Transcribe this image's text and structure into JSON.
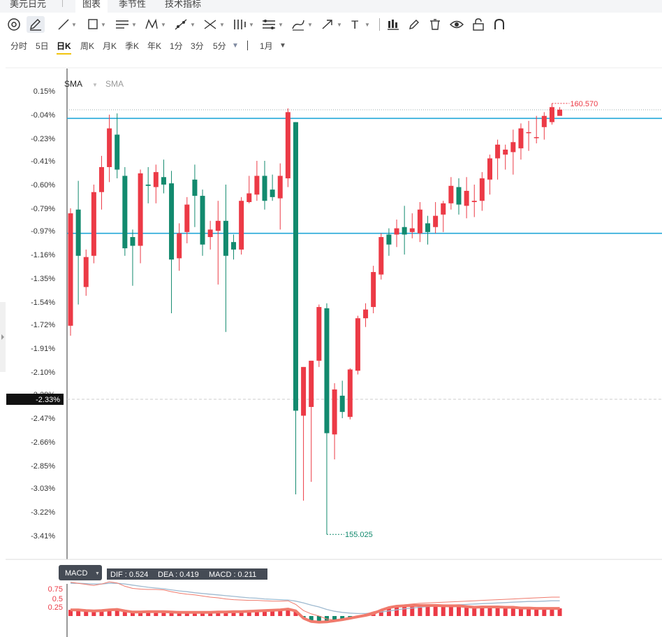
{
  "tabs": {
    "instrument": "美元日元",
    "chart": "图表",
    "seasonal": "季节性",
    "indicators": "技术指标"
  },
  "toolbar": {
    "tools": [
      "circle-tool",
      "pencil-tool",
      "line-tool",
      "rect-tool",
      "channel-tool",
      "pattern-tool",
      "ruler-tool",
      "fib-tool",
      "bars-tool",
      "hlines-tool",
      "brush-tool",
      "arrow-tool",
      "text-tool",
      "chart-template-tool",
      "edit-tool",
      "trash-tool",
      "eye-tool",
      "lock-tool",
      "magnet-tool"
    ]
  },
  "periods": {
    "items": [
      "分时",
      "5日",
      "日K",
      "周K",
      "月K",
      "季K",
      "年K",
      "1分",
      "3分",
      "5分"
    ],
    "active": "日K",
    "range": "1月"
  },
  "legend": {
    "main": "SMA",
    "secondary": "SMA"
  },
  "yaxis": {
    "ticks": [
      "0.15%",
      "-0.04%",
      "-0.23%",
      "-0.41%",
      "-0.60%",
      "-0.79%",
      "-0.97%",
      "-1.16%",
      "-1.35%",
      "-1.54%",
      "-1.72%",
      "-1.91%",
      "-2.10%",
      "-2.28%",
      "-2.47%",
      "-2.66%",
      "-2.85%",
      "-3.03%",
      "-3.22%",
      "-3.41%"
    ],
    "crosshair_label": "-2.33%"
  },
  "annotations": {
    "high": "160.570",
    "low": "155.025"
  },
  "macd": {
    "label": "MACD",
    "dif": "DIF : 0.524",
    "dea": "DEA : 0.419",
    "macd": "MACD : 0.211",
    "ticks": [
      "0.75",
      "0.5",
      "0.25"
    ]
  },
  "colors": {
    "up": "#ec3a46",
    "down": "#128a6e",
    "hline": "#22a7d8",
    "macd_line": "#f07a6c",
    "dea_line": "#9fbad0"
  },
  "chart_data": {
    "type": "candlestick",
    "y_unit": "%",
    "ylim": [
      -3.5,
      0.2
    ],
    "horizontal_lines": [
      -0.07,
      -0.99
    ],
    "candles": [
      {
        "o": -1.73,
        "c": -0.83,
        "h": -0.79,
        "l": -1.81
      },
      {
        "o": -0.8,
        "c": -1.17,
        "h": -0.57,
        "l": -1.56
      },
      {
        "o": -1.42,
        "c": -1.18,
        "h": -1.12,
        "l": -1.49
      },
      {
        "o": -1.17,
        "c": -0.66,
        "h": -0.6,
        "l": -1.23
      },
      {
        "o": -0.66,
        "c": -0.46,
        "h": -0.37,
        "l": -0.8
      },
      {
        "o": -0.46,
        "c": -0.15,
        "h": -0.04,
        "l": -0.58
      },
      {
        "o": -0.2,
        "c": -0.48,
        "h": -0.03,
        "l": -0.55
      },
      {
        "o": -0.53,
        "c": -1.11,
        "h": -0.46,
        "l": -1.17
      },
      {
        "o": -1.02,
        "c": -1.09,
        "h": -0.96,
        "l": -1.41
      },
      {
        "o": -1.09,
        "c": -0.51,
        "h": -0.48,
        "l": -1.23
      },
      {
        "o": -0.6,
        "c": -0.61,
        "h": -0.46,
        "l": -0.75
      },
      {
        "o": -0.62,
        "c": -0.5,
        "h": -0.44,
        "l": -0.75
      },
      {
        "o": -0.54,
        "c": -0.6,
        "h": -0.4,
        "l": -0.67
      },
      {
        "o": -0.59,
        "c": -1.2,
        "h": -0.49,
        "l": -1.63
      },
      {
        "o": -1.19,
        "c": -0.99,
        "h": -0.91,
        "l": -1.29
      },
      {
        "o": -0.98,
        "c": -0.76,
        "h": -0.7,
        "l": -1.07
      },
      {
        "o": -0.56,
        "c": -0.69,
        "h": -0.44,
        "l": -0.94
      },
      {
        "o": -0.69,
        "c": -1.08,
        "h": -0.64,
        "l": -1.17
      },
      {
        "o": -1.02,
        "c": -0.96,
        "h": -0.89,
        "l": -1.12
      },
      {
        "o": -0.97,
        "c": -0.89,
        "h": -0.73,
        "l": -1.4
      },
      {
        "o": -0.89,
        "c": -1.17,
        "h": -0.6,
        "l": -1.78
      },
      {
        "o": -1.06,
        "c": -1.12,
        "h": -1.0,
        "l": -1.2
      },
      {
        "o": -1.12,
        "c": -0.73,
        "h": -0.7,
        "l": -1.16
      },
      {
        "o": -0.74,
        "c": -0.67,
        "h": -0.53,
        "l": -0.75
      },
      {
        "o": -0.68,
        "c": -0.53,
        "h": -0.41,
        "l": -0.73
      },
      {
        "o": -0.53,
        "c": -0.73,
        "h": -0.41,
        "l": -0.8
      },
      {
        "o": -0.64,
        "c": -0.7,
        "h": -0.52,
        "l": -0.73
      },
      {
        "o": -0.71,
        "c": -0.53,
        "h": -0.43,
        "l": -0.96
      },
      {
        "o": -0.55,
        "c": -0.02,
        "h": 0.01,
        "l": -0.62
      },
      {
        "o": -0.1,
        "c": -2.41,
        "h": -0.1,
        "l": -3.08
      },
      {
        "o": -2.45,
        "c": -2.06,
        "h": -2.06,
        "l": -3.13
      },
      {
        "o": -2.38,
        "c": -2.01,
        "h": -2.01,
        "l": -2.98
      },
      {
        "o": -2.01,
        "c": -1.58,
        "h": -1.56,
        "l": -2.06
      },
      {
        "o": -1.59,
        "c": -2.59,
        "h": -1.55,
        "l": -3.4
      },
      {
        "o": -2.6,
        "c": -2.24,
        "h": -2.19,
        "l": -2.8
      },
      {
        "o": -2.29,
        "c": -2.42,
        "h": -2.17,
        "l": -2.47
      },
      {
        "o": -2.46,
        "c": -2.08,
        "h": -2.07,
        "l": -2.48
      },
      {
        "o": -2.09,
        "c": -1.67,
        "h": -1.65,
        "l": -2.12
      },
      {
        "o": -1.67,
        "c": -1.6,
        "h": -1.55,
        "l": -1.74
      },
      {
        "o": -1.58,
        "c": -1.3,
        "h": -1.25,
        "l": -1.63
      },
      {
        "o": -1.32,
        "c": -1.02,
        "h": -0.99,
        "l": -1.36
      },
      {
        "o": -1.0,
        "c": -1.08,
        "h": -0.95,
        "l": -1.17
      },
      {
        "o": -1.0,
        "c": -0.95,
        "h": -0.88,
        "l": -1.1
      },
      {
        "o": -0.94,
        "c": -1.0,
        "h": -0.77,
        "l": -1.16
      },
      {
        "o": -0.98,
        "c": -0.95,
        "h": -0.83,
        "l": -1.03
      },
      {
        "o": -0.99,
        "c": -0.8,
        "h": -0.74,
        "l": -1.06
      },
      {
        "o": -0.91,
        "c": -0.98,
        "h": -0.85,
        "l": -1.08
      },
      {
        "o": -0.94,
        "c": -0.85,
        "h": -0.74,
        "l": -0.99
      },
      {
        "o": -0.84,
        "c": -0.75,
        "h": -0.73,
        "l": -0.98
      },
      {
        "o": -0.75,
        "c": -0.61,
        "h": -0.54,
        "l": -0.8
      },
      {
        "o": -0.62,
        "c": -0.76,
        "h": -0.55,
        "l": -0.84
      },
      {
        "o": -0.77,
        "c": -0.65,
        "h": -0.54,
        "l": -0.87
      },
      {
        "o": -0.74,
        "c": -0.73,
        "h": -0.6,
        "l": -0.86
      },
      {
        "o": -0.73,
        "c": -0.55,
        "h": -0.5,
        "l": -0.81
      },
      {
        "o": -0.56,
        "c": -0.39,
        "h": -0.36,
        "l": -0.68
      },
      {
        "o": -0.39,
        "c": -0.28,
        "h": -0.24,
        "l": -0.56
      },
      {
        "o": -0.36,
        "c": -0.32,
        "h": -0.28,
        "l": -0.48
      },
      {
        "o": -0.34,
        "c": -0.26,
        "h": -0.16,
        "l": -0.52
      },
      {
        "o": -0.31,
        "c": -0.15,
        "h": -0.11,
        "l": -0.4
      },
      {
        "o": -0.18,
        "c": -0.18,
        "h": -0.09,
        "l": -0.33
      },
      {
        "o": -0.22,
        "c": -0.22,
        "h": -0.05,
        "l": -0.27
      },
      {
        "o": -0.14,
        "c": -0.05,
        "h": -0.02,
        "l": -0.24
      },
      {
        "o": -0.1,
        "c": 0.02,
        "h": 0.05,
        "l": -0.12
      },
      {
        "o": -0.05,
        "c": 0.0,
        "h": 0.02,
        "l": -0.03
      }
    ],
    "macd": {
      "histogram": [
        0.17,
        0.17,
        0.15,
        0.14,
        0.15,
        0.17,
        0.18,
        0.14,
        0.11,
        0.11,
        0.12,
        0.12,
        0.12,
        0.11,
        0.1,
        0.1,
        0.1,
        0.1,
        0.1,
        0.11,
        0.11,
        0.12,
        0.12,
        0.13,
        0.14,
        0.15,
        0.16,
        0.17,
        0.19,
        0.14,
        -0.06,
        -0.15,
        -0.17,
        -0.16,
        -0.13,
        -0.1,
        -0.06,
        -0.02,
        0.02,
        0.07,
        0.16,
        0.23,
        0.27,
        0.28,
        0.29,
        0.29,
        0.29,
        0.29,
        0.28,
        0.28,
        0.28,
        0.26,
        0.24,
        0.25,
        0.25,
        0.25,
        0.24,
        0.24,
        0.22,
        0.22,
        0.21,
        0.21,
        0.21,
        0.21
      ],
      "dif_line": [
        0.93,
        0.9,
        0.87,
        0.84,
        0.88,
        0.94,
        0.91,
        0.82,
        0.76,
        0.74,
        0.73,
        0.73,
        0.72,
        0.67,
        0.63,
        0.6,
        0.58,
        0.55,
        0.52,
        0.5,
        0.47,
        0.45,
        0.44,
        0.43,
        0.43,
        0.42,
        0.41,
        0.41,
        0.42,
        0.32,
        0.15,
        0.06,
        0.0,
        -0.08,
        -0.11,
        -0.1,
        -0.05,
        0.0,
        0.05,
        0.12,
        0.17,
        0.23,
        0.28,
        0.31,
        0.33,
        0.35,
        0.36,
        0.37,
        0.38,
        0.39,
        0.4,
        0.41,
        0.42,
        0.43,
        0.44,
        0.45,
        0.46,
        0.47,
        0.48,
        0.49,
        0.5,
        0.51,
        0.52,
        0.52
      ],
      "dea_line": [
        0.9,
        0.9,
        0.89,
        0.88,
        0.88,
        0.9,
        0.9,
        0.88,
        0.85,
        0.82,
        0.79,
        0.77,
        0.75,
        0.72,
        0.69,
        0.67,
        0.64,
        0.62,
        0.6,
        0.58,
        0.56,
        0.54,
        0.52,
        0.5,
        0.49,
        0.47,
        0.46,
        0.45,
        0.44,
        0.41,
        0.36,
        0.3,
        0.25,
        0.18,
        0.13,
        0.1,
        0.08,
        0.07,
        0.07,
        0.09,
        0.11,
        0.14,
        0.17,
        0.2,
        0.22,
        0.24,
        0.26,
        0.27,
        0.28,
        0.3,
        0.31,
        0.32,
        0.33,
        0.34,
        0.35,
        0.36,
        0.37,
        0.38,
        0.39,
        0.4,
        0.4,
        0.41,
        0.42,
        0.42
      ]
    }
  }
}
